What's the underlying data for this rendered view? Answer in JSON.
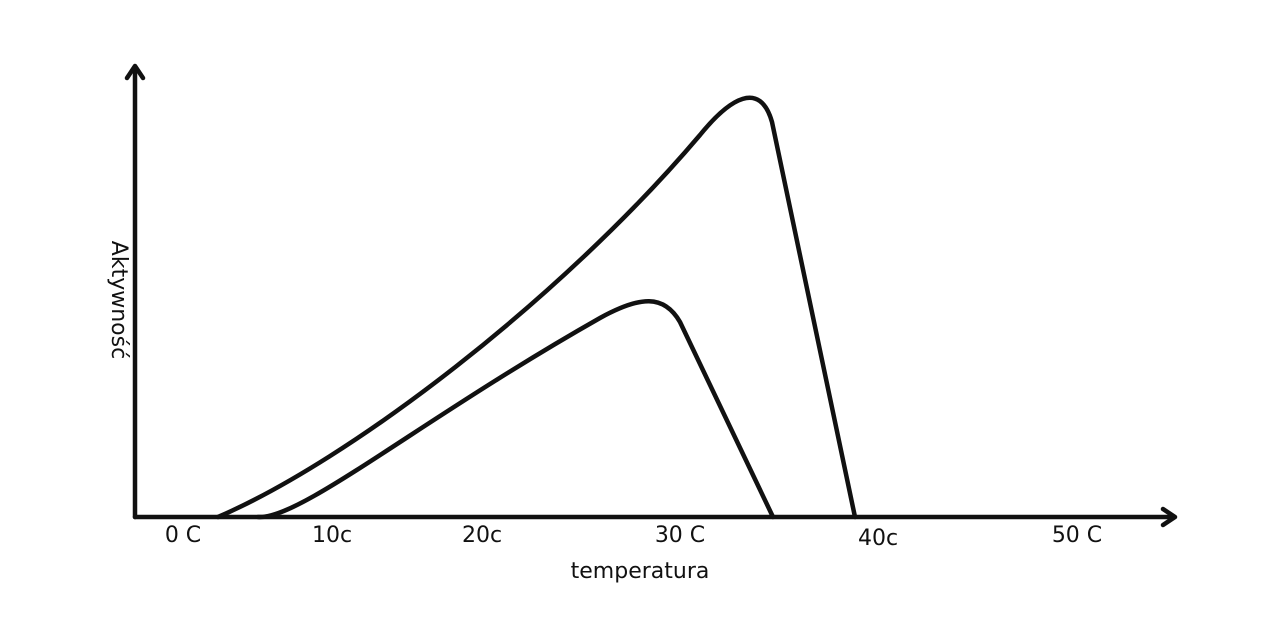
{
  "axes": {
    "y_label": "Aktywność",
    "x_label": "temperatura",
    "x_ticks": [
      "0 C",
      "10c",
      "20c",
      "30 C",
      "40c",
      "50 C"
    ]
  }
}
